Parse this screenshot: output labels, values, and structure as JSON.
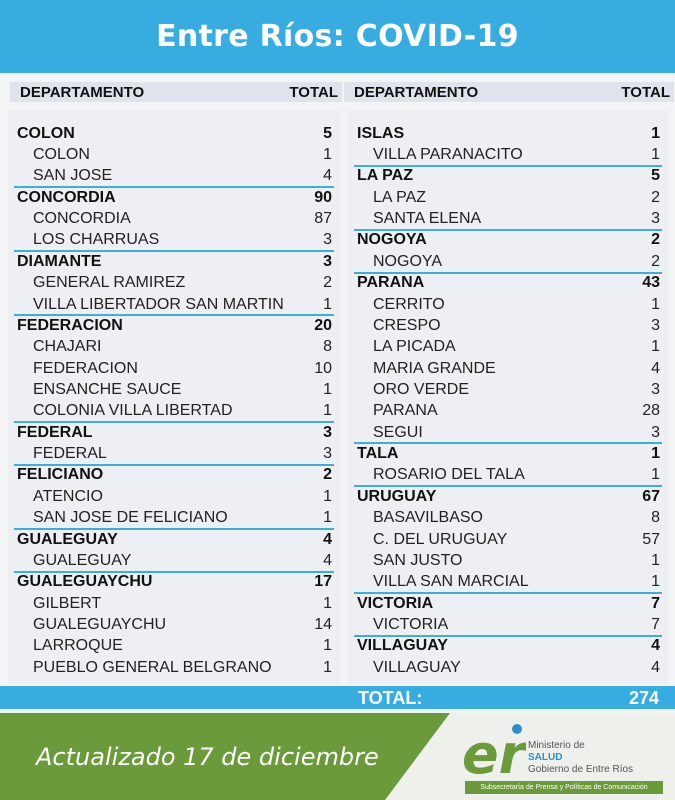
{
  "header": {
    "title": "Entre Ríos: COVID-19"
  },
  "columns": {
    "dept_label": "DEPARTAMENTO",
    "total_label": "TOTAL"
  },
  "left": [
    {
      "name": "COLON",
      "total": "5",
      "subs": [
        {
          "name": "COLON",
          "total": "1"
        },
        {
          "name": "SAN JOSE",
          "total": "4"
        }
      ]
    },
    {
      "name": "CONCORDIA",
      "total": "90",
      "subs": [
        {
          "name": "CONCORDIA",
          "total": "87"
        },
        {
          "name": "LOS CHARRUAS",
          "total": "3"
        }
      ]
    },
    {
      "name": "DIAMANTE",
      "total": "3",
      "subs": [
        {
          "name": "GENERAL RAMIREZ",
          "total": "2"
        },
        {
          "name": "VILLA LIBERTADOR SAN MARTIN",
          "total": "1"
        }
      ]
    },
    {
      "name": "FEDERACION",
      "total": "20",
      "subs": [
        {
          "name": "CHAJARI",
          "total": "8"
        },
        {
          "name": "FEDERACION",
          "total": "10"
        },
        {
          "name": "ENSANCHE SAUCE",
          "total": "1"
        },
        {
          "name": "COLONIA VILLA LIBERTAD",
          "total": "1"
        }
      ]
    },
    {
      "name": "FEDERAL",
      "total": "3",
      "subs": [
        {
          "name": "FEDERAL",
          "total": "3"
        }
      ]
    },
    {
      "name": "FELICIANO",
      "total": "2",
      "subs": [
        {
          "name": "ATENCIO",
          "total": "1"
        },
        {
          "name": "SAN JOSE DE FELICIANO",
          "total": "1"
        }
      ]
    },
    {
      "name": "GUALEGUAY",
      "total": "4",
      "subs": [
        {
          "name": "GUALEGUAY",
          "total": "4"
        }
      ]
    },
    {
      "name": "GUALEGUAYCHU",
      "total": "17",
      "subs": [
        {
          "name": "GILBERT",
          "total": "1"
        },
        {
          "name": "GUALEGUAYCHU",
          "total": "14"
        },
        {
          "name": "LARROQUE",
          "total": "1"
        },
        {
          "name": "PUEBLO GENERAL BELGRANO",
          "total": "1"
        }
      ]
    }
  ],
  "right": [
    {
      "name": "ISLAS",
      "total": "1",
      "subs": [
        {
          "name": "VILLA PARANACITO",
          "total": "1"
        }
      ]
    },
    {
      "name": "LA PAZ",
      "total": "5",
      "subs": [
        {
          "name": "LA PAZ",
          "total": "2"
        },
        {
          "name": "SANTA ELENA",
          "total": "3"
        }
      ]
    },
    {
      "name": "NOGOYA",
      "total": "2",
      "subs": [
        {
          "name": "NOGOYA",
          "total": "2"
        }
      ]
    },
    {
      "name": "PARANA",
      "total": "43",
      "subs": [
        {
          "name": "CERRITO",
          "total": "1"
        },
        {
          "name": "CRESPO",
          "total": "3"
        },
        {
          "name": "LA PICADA",
          "total": "1"
        },
        {
          "name": "MARIA GRANDE",
          "total": "4"
        },
        {
          "name": "ORO VERDE",
          "total": "3"
        },
        {
          "name": "PARANA",
          "total": "28"
        },
        {
          "name": "SEGUI",
          "total": "3"
        }
      ]
    },
    {
      "name": "TALA",
      "total": "1",
      "subs": [
        {
          "name": "ROSARIO DEL TALA",
          "total": "1"
        }
      ]
    },
    {
      "name": "URUGUAY",
      "total": "67",
      "subs": [
        {
          "name": "BASAVILBASO",
          "total": "8"
        },
        {
          "name": "C. DEL URUGUAY",
          "total": "57"
        },
        {
          "name": "SAN JUSTO",
          "total": "1"
        },
        {
          "name": "VILLA SAN MARCIAL",
          "total": "1"
        }
      ]
    },
    {
      "name": "VICTORIA",
      "total": "7",
      "subs": [
        {
          "name": "VICTORIA",
          "total": "7"
        }
      ]
    },
    {
      "name": "VILLAGUAY",
      "total": "4",
      "subs": [
        {
          "name": "VILLAGUAY",
          "total": "4"
        }
      ]
    }
  ],
  "total": {
    "label": "TOTAL:",
    "value": "274"
  },
  "footer": {
    "updated": "Actualizado 17 de diciembre",
    "logo_text": "er",
    "ministry_line1": "Ministerio de",
    "ministry_line2": "SALUD",
    "ministry_line3": "Gobierno de Entre Ríos",
    "subsecretaria": "Subsecretaría de Prensa y Políticas de Comunicación"
  },
  "colors": {
    "blue": "#36ace0",
    "green": "#6b9a3a"
  }
}
